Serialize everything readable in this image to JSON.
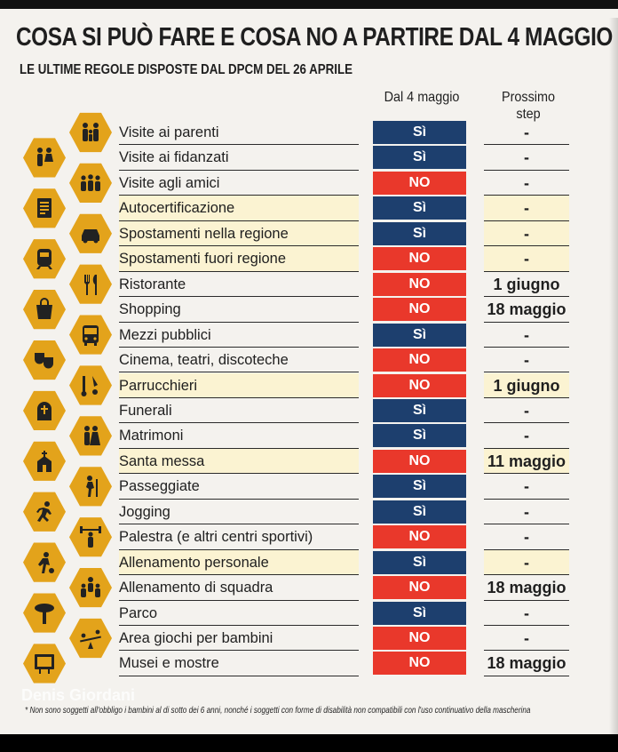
{
  "title": "COSA SI PUÒ FARE E COSA NO A PARTIRE DAL 4 MAGGIO",
  "subtitle": "LE ULTIME REGOLE DISPOSTE DAL DPCM DEL 26 APRILE",
  "columns": {
    "dal": "Dal 4 maggio",
    "next": "Prossimo step"
  },
  "colors": {
    "yes": "#1d3f6e",
    "no": "#e9382b",
    "hex": "#e3a31b",
    "highlight": "#fbf3d2"
  },
  "rows": [
    {
      "label": "Visite ai parenti",
      "status": "Sì",
      "next": "-",
      "highlight": false,
      "icon": "family-icon"
    },
    {
      "label": "Visite ai fidanzati",
      "status": "Sì",
      "next": "-",
      "highlight": false,
      "icon": "couple-icon"
    },
    {
      "label": "Visite agli amici",
      "status": "NO",
      "next": "-",
      "highlight": false,
      "icon": "friends-icon"
    },
    {
      "label": "Autocertificazione",
      "status": "Sì",
      "next": "-",
      "highlight": true,
      "icon": "document-icon"
    },
    {
      "label": "Spostamenti nella regione",
      "status": "Sì",
      "next": "-",
      "highlight": true,
      "icon": "car-icon"
    },
    {
      "label": "Spostamenti fuori regione",
      "status": "NO",
      "next": "-",
      "highlight": true,
      "icon": "train-icon"
    },
    {
      "label": "Ristorante",
      "status": "NO",
      "next": "1 giugno",
      "highlight": false,
      "icon": "cutlery-icon"
    },
    {
      "label": "Shopping",
      "status": "NO",
      "next": "18 maggio",
      "highlight": false,
      "icon": "shopping-bag-icon"
    },
    {
      "label": "Mezzi pubblici",
      "status": "Sì",
      "next": "-",
      "highlight": false,
      "icon": "bus-icon"
    },
    {
      "label": "Cinema, teatri, discoteche",
      "status": "NO",
      "next": "-",
      "highlight": false,
      "icon": "theater-masks-icon"
    },
    {
      "label": "Parrucchieri",
      "status": "NO",
      "next": "1 giugno",
      "highlight": true,
      "icon": "scissors-icon"
    },
    {
      "label": "Funerali",
      "status": "Sì",
      "next": "-",
      "highlight": false,
      "icon": "tombstone-icon"
    },
    {
      "label": "Matrimoni",
      "status": "Sì",
      "next": "-",
      "highlight": false,
      "icon": "wedding-icon"
    },
    {
      "label": "Santa messa",
      "status": "NO",
      "next": "11 maggio",
      "highlight": true,
      "icon": "church-icon"
    },
    {
      "label": "Passeggiate",
      "status": "Sì",
      "next": "-",
      "highlight": false,
      "icon": "hiker-icon"
    },
    {
      "label": "Jogging",
      "status": "Sì",
      "next": "-",
      "highlight": false,
      "icon": "runner-icon"
    },
    {
      "label": "Palestra (e altri centri sportivi)",
      "status": "NO",
      "next": "-",
      "highlight": false,
      "icon": "weightlifter-icon"
    },
    {
      "label": "Allenamento personale",
      "status": "Sì",
      "next": "-",
      "highlight": true,
      "icon": "soccer-player-icon"
    },
    {
      "label": "Allenamento di squadra",
      "status": "NO",
      "next": "18 maggio",
      "highlight": false,
      "icon": "team-icon"
    },
    {
      "label": "Parco",
      "status": "Sì",
      "next": "-",
      "highlight": false,
      "icon": "tree-icon"
    },
    {
      "label": "Area giochi per bambini",
      "status": "NO",
      "next": "-",
      "highlight": false,
      "icon": "seesaw-icon"
    },
    {
      "label": "Musei e mostre",
      "status": "NO",
      "next": "18 maggio",
      "highlight": false,
      "icon": "museum-frame-icon"
    }
  ],
  "footnote": "* Non sono soggetti all'obbligo i bambini al di sotto dei 6 anni, nonché i soggetti con forme di disabilità non compatibili con l'uso continuativo della mascherina",
  "watermark": "Denis Giordani"
}
